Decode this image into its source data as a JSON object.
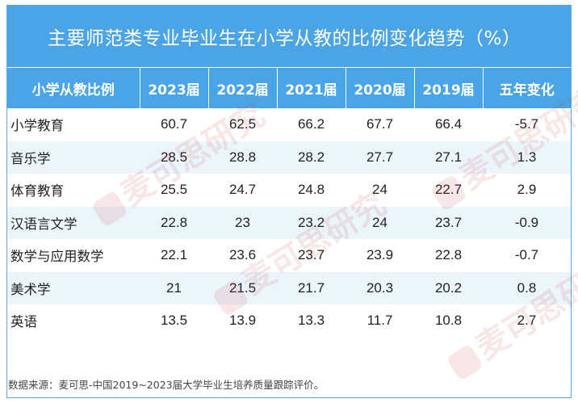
{
  "title": "主要师范类专业毕业生在小学从教的比例变化趋势（%）",
  "footnote": "数据来源：麦可思-中国2019~2023届大学毕业生培养质量跟踪评价。",
  "watermark": "麦可思研究",
  "colors": {
    "header": "#4aa4e6",
    "stripe": "#ebf5fc",
    "watermark": "#c83c3c"
  },
  "chart_data": {
    "type": "table",
    "title": "主要师范类专业毕业生在小学从教的比例变化趋势（%）",
    "columns": [
      "小学从教比例",
      "2023届",
      "2022届",
      "2021届",
      "2020届",
      "2019届",
      "五年变化"
    ],
    "rows": [
      [
        "小学教育",
        "60.7",
        "62.5",
        "66.2",
        "67.7",
        "66.4",
        "-5.7"
      ],
      [
        "音乐学",
        "28.5",
        "28.8",
        "28.2",
        "27.7",
        "27.1",
        "1.3"
      ],
      [
        "体育教育",
        "25.5",
        "24.7",
        "24.8",
        "24",
        "22.7",
        "2.9"
      ],
      [
        "汉语言文学",
        "22.8",
        "23",
        "23.2",
        "24",
        "23.7",
        "-0.9"
      ],
      [
        "数学与应用数学",
        "22.1",
        "23.6",
        "23.7",
        "23.9",
        "22.8",
        "-0.7"
      ],
      [
        "美术学",
        "21",
        "21.5",
        "21.7",
        "20.3",
        "20.2",
        "0.8"
      ],
      [
        "英语",
        "13.5",
        "13.9",
        "13.3",
        "11.7",
        "10.8",
        "2.7"
      ]
    ]
  }
}
